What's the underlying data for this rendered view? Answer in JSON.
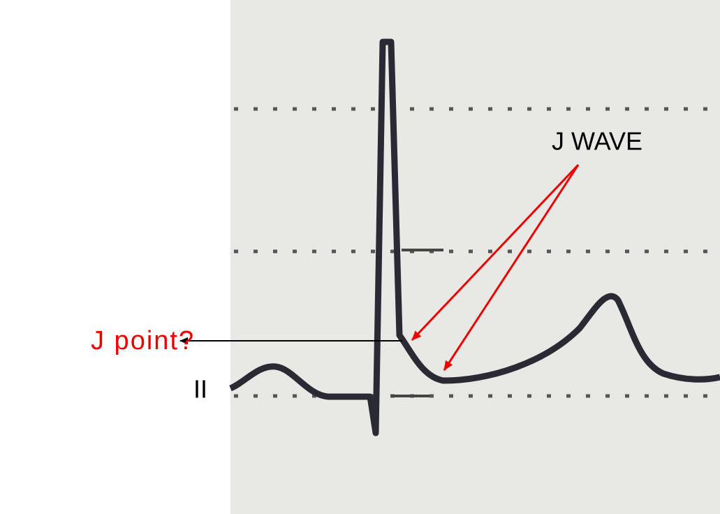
{
  "annotations": {
    "j_wave": "J WAVE",
    "j_point": "J point?",
    "lead": "II"
  }
}
